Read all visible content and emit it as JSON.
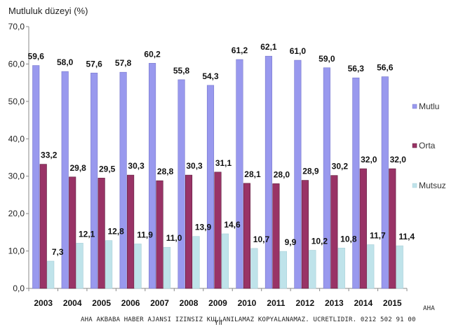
{
  "chart_data": {
    "type": "bar",
    "title": "",
    "ylabel": "Mutluluk düzeyi (%)",
    "xlabel": "Yıl",
    "ylim": [
      0,
      70
    ],
    "yticks": [
      "0,0",
      "10,0",
      "20,0",
      "30,0",
      "40,0",
      "50,0",
      "60,0",
      "70,0"
    ],
    "ytick_values": [
      0,
      10,
      20,
      30,
      40,
      50,
      60,
      70
    ],
    "grid": false,
    "legend_position": "right",
    "categories": [
      "2003",
      "2004",
      "2005",
      "2006",
      "2007",
      "2008",
      "2009",
      "2010",
      "2011",
      "2012",
      "2013",
      "2014",
      "2015"
    ],
    "series": [
      {
        "name": "Mutlu",
        "color": "#9999ee",
        "values": [
          59.6,
          58.0,
          57.6,
          57.8,
          60.2,
          55.8,
          54.3,
          61.2,
          62.1,
          61.0,
          59.0,
          56.3,
          56.6
        ],
        "labels": [
          "59,6",
          "58,0",
          "57,6",
          "57,8",
          "60,2",
          "55,8",
          "54,3",
          "61,2",
          "62,1",
          "61,0",
          "59,0",
          "56,3",
          "56,6"
        ]
      },
      {
        "name": "Orta",
        "color": "#993366",
        "values": [
          33.2,
          29.8,
          29.5,
          30.3,
          28.8,
          30.3,
          31.1,
          28.1,
          28.0,
          28.9,
          30.2,
          32.0,
          32.0
        ],
        "labels": [
          "33,2",
          "29,8",
          "29,5",
          "30,3",
          "28,8",
          "30,3",
          "31,1",
          "28,1",
          "28,0",
          "28,9",
          "30,2",
          "32,0",
          "32,0"
        ]
      },
      {
        "name": "Mutsuz",
        "color": "#bfe3ea",
        "values": [
          7.3,
          12.1,
          12.8,
          11.9,
          11.0,
          13.9,
          14.6,
          10.7,
          9.9,
          10.2,
          10.8,
          11.7,
          11.4
        ],
        "labels": [
          "7,3",
          "12,1",
          "12,8",
          "11,9",
          "11,0",
          "13,9",
          "14,6",
          "10,7",
          "9,9",
          "10,2",
          "10,8",
          "11,7",
          "11,4"
        ]
      }
    ]
  },
  "watermark": {
    "brand": "AHA",
    "text": "AHA AKBABA HABER AJANSI IZINSIZ KULLANILAMAZ KOPYALANAMAZ. UCRETLIDIR. 0212 502 91 00"
  }
}
